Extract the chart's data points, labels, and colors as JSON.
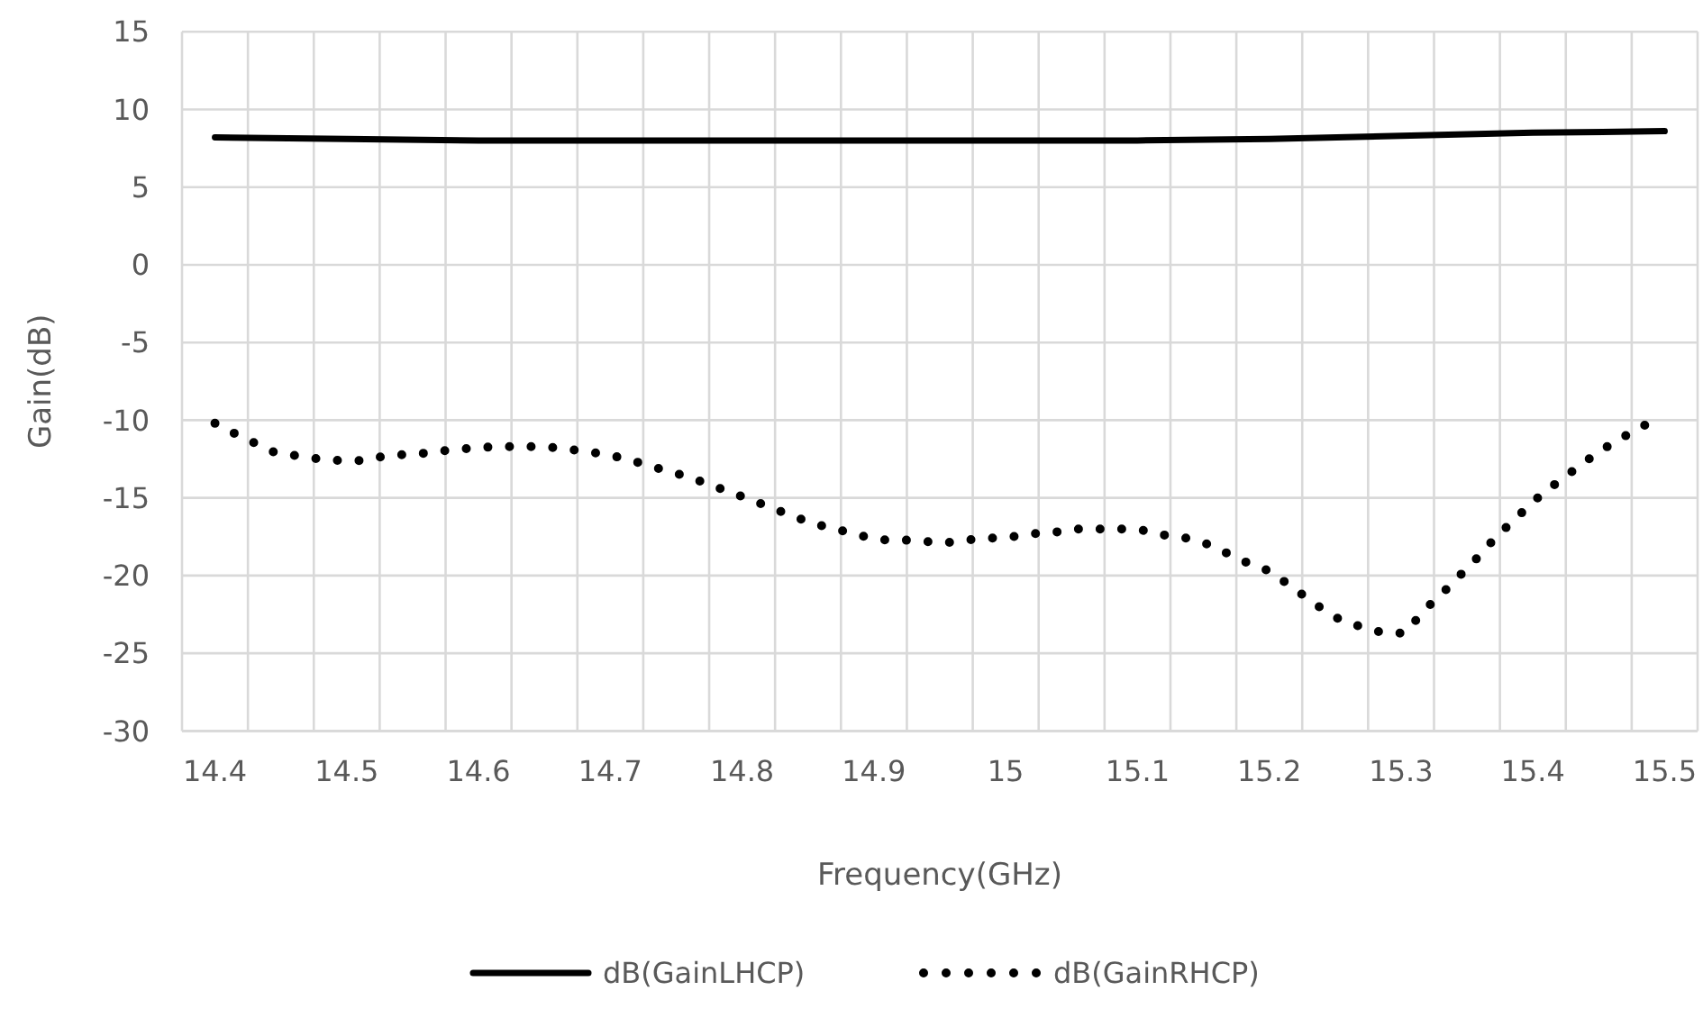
{
  "chart_data": {
    "type": "line",
    "xlabel": "Frequency(GHz)",
    "ylabel": "Gain(dB)",
    "xlim": [
      14.375,
      15.525
    ],
    "ylim": [
      -30,
      15
    ],
    "xticks": [
      14.4,
      14.5,
      14.6,
      14.7,
      14.8,
      14.9,
      15,
      15.1,
      15.2,
      15.3,
      15.4,
      15.5,
      {
        "value": 14.375,
        "label": null
      },
      {
        "value": 14.425,
        "label": null
      },
      {
        "value": 14.475,
        "label": null
      },
      {
        "value": 14.525,
        "label": null
      },
      {
        "value": 14.575,
        "label": null
      },
      {
        "value": 14.625,
        "label": null
      },
      {
        "value": 14.675,
        "label": null
      },
      {
        "value": 14.725,
        "label": null
      },
      {
        "value": 14.775,
        "label": null
      },
      {
        "value": 14.825,
        "label": null
      },
      {
        "value": 14.875,
        "label": null
      },
      {
        "value": 14.925,
        "label": null
      },
      {
        "value": 14.975,
        "label": null
      },
      {
        "value": 15.025,
        "label": null
      },
      {
        "value": 15.075,
        "label": null
      },
      {
        "value": 15.125,
        "label": null
      },
      {
        "value": 15.175,
        "label": null
      },
      {
        "value": 15.225,
        "label": null
      },
      {
        "value": 15.275,
        "label": null
      },
      {
        "value": 15.325,
        "label": null
      },
      {
        "value": 15.375,
        "label": null
      },
      {
        "value": 15.425,
        "label": null
      },
      {
        "value": 15.475,
        "label": null
      },
      {
        "value": 15.525,
        "label": null
      }
    ],
    "yticks": [
      -30,
      -25,
      -20,
      -15,
      -10,
      -5,
      0,
      5,
      10,
      15
    ],
    "grid": true,
    "legend": "bottom",
    "marker": "none",
    "series": [
      {
        "name": "dB(GainLHCP)",
        "color": "#000000",
        "line_style": "solid",
        "x": [
          14.4,
          14.5,
          14.6,
          14.7,
          14.8,
          14.9,
          15.0,
          15.1,
          15.2,
          15.3,
          15.4,
          15.5
        ],
        "values": [
          8.2,
          8.1,
          8.0,
          8.0,
          8.0,
          8.0,
          8.0,
          8.0,
          8.1,
          8.3,
          8.5,
          8.6
        ]
      },
      {
        "name": "dB(GainRHCP)",
        "color": "#000000",
        "line_style": "dotted",
        "x": [
          14.4,
          14.416,
          14.431,
          14.446,
          14.463,
          14.479,
          14.496,
          14.512,
          14.529,
          14.546,
          14.563,
          14.579,
          14.596,
          14.613,
          14.629,
          14.647,
          14.663,
          14.68,
          14.696,
          14.713,
          14.728,
          14.745,
          14.761,
          14.777,
          14.793,
          14.809,
          14.824,
          14.839,
          14.856,
          14.871,
          14.888,
          14.905,
          14.921,
          14.938,
          14.954,
          14.971,
          14.987,
          15.005,
          15.021,
          15.038,
          15.054,
          15.071,
          15.088,
          15.105,
          15.121,
          15.138,
          15.154,
          15.169,
          15.184,
          15.2,
          15.215,
          15.228,
          15.241,
          15.255,
          15.27,
          15.287,
          15.303,
          15.314,
          15.325,
          15.338,
          15.349,
          15.361,
          15.372,
          15.385,
          15.397,
          15.409,
          15.422,
          15.436,
          15.449,
          15.464,
          15.479,
          15.494
        ],
        "values": [
          -10.2,
          -10.9,
          -11.5,
          -12.1,
          -12.3,
          -12.5,
          -12.6,
          -12.6,
          -12.3,
          -12.2,
          -12.1,
          -11.9,
          -11.8,
          -11.7,
          -11.7,
          -11.7,
          -11.8,
          -12.0,
          -12.2,
          -12.5,
          -12.9,
          -13.3,
          -13.7,
          -14.2,
          -14.7,
          -15.2,
          -15.7,
          -16.2,
          -16.7,
          -17.0,
          -17.4,
          -17.7,
          -17.7,
          -17.8,
          -17.9,
          -17.7,
          -17.6,
          -17.5,
          -17.3,
          -17.2,
          -17.0,
          -17.0,
          -17.0,
          -17.1,
          -17.4,
          -17.6,
          -18.0,
          -18.6,
          -19.2,
          -19.7,
          -20.6,
          -21.4,
          -22.2,
          -22.9,
          -23.3,
          -23.7,
          -23.7,
          -22.6,
          -21.6,
          -20.6,
          -19.6,
          -18.6,
          -17.5,
          -16.5,
          -15.5,
          -14.6,
          -13.8,
          -12.9,
          -12.1,
          -11.3,
          -10.6,
          -9.9
        ]
      }
    ]
  }
}
